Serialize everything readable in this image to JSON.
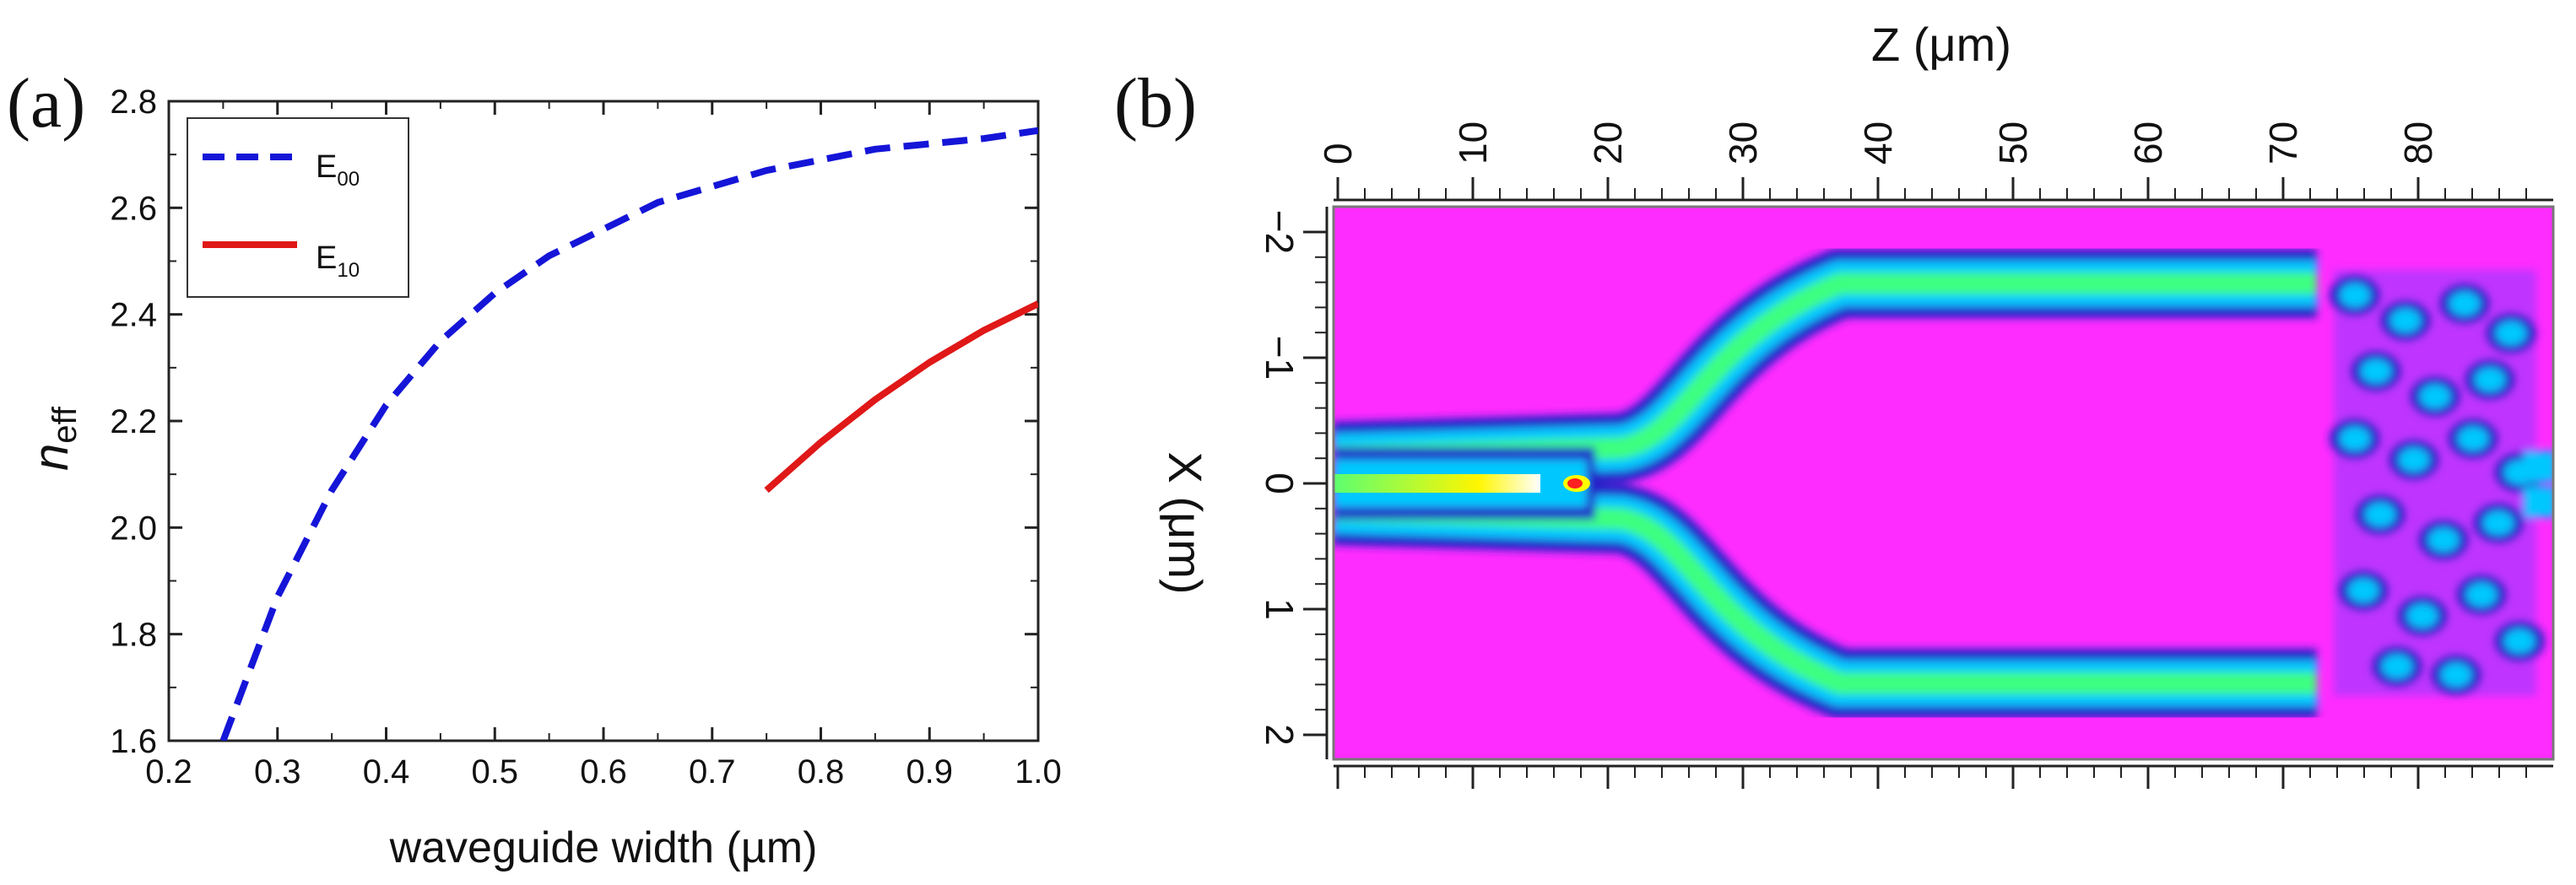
{
  "chart_data": [
    {
      "panel": "(a)",
      "type": "line",
      "xlabel": "waveguide width (µm)",
      "ylabel": "n",
      "ylabel_sub": "eff",
      "xlim": [
        0.2,
        1.0
      ],
      "ylim": [
        1.6,
        2.8
      ],
      "xticks": [
        "0.2",
        "0.3",
        "0.4",
        "0.5",
        "0.6",
        "0.7",
        "0.8",
        "0.9",
        "1.0"
      ],
      "yticks": [
        "1.6",
        "1.8",
        "2.0",
        "2.2",
        "2.4",
        "2.6",
        "2.8"
      ],
      "legend_position": "top-left",
      "series": [
        {
          "name": "E",
          "name_sub": "00",
          "style": "dashed",
          "color": "#1515d8",
          "x": [
            0.25,
            0.3,
            0.35,
            0.4,
            0.45,
            0.5,
            0.55,
            0.6,
            0.65,
            0.7,
            0.75,
            0.8,
            0.85,
            0.9,
            0.95,
            1.0
          ],
          "y": [
            1.6,
            1.87,
            2.07,
            2.23,
            2.35,
            2.44,
            2.51,
            2.56,
            2.61,
            2.64,
            2.67,
            2.69,
            2.71,
            2.72,
            2.73,
            2.745
          ]
        },
        {
          "name": "E",
          "name_sub": "10",
          "style": "solid",
          "color": "#e01818",
          "x": [
            0.75,
            0.8,
            0.85,
            0.9,
            0.95,
            1.0
          ],
          "y": [
            2.07,
            2.16,
            2.24,
            2.31,
            2.37,
            2.42
          ]
        }
      ]
    },
    {
      "panel": "(b)",
      "type": "heatmap",
      "xlabel": "Z (μm)",
      "ylabel": "X (μm)",
      "xlim": [
        0,
        90
      ],
      "ylim": [
        -2.2,
        2.2
      ],
      "xticks": [
        "0",
        "10",
        "20",
        "30",
        "40",
        "50",
        "60",
        "70",
        "80"
      ],
      "yticks": [
        "−2",
        "−1",
        "0",
        "1",
        "2"
      ],
      "background_color": "#ff2cff",
      "field_colors": [
        "#2020c8",
        "#00c8ff",
        "#3cff80",
        "#ffff00",
        "#ff2020"
      ]
    }
  ]
}
